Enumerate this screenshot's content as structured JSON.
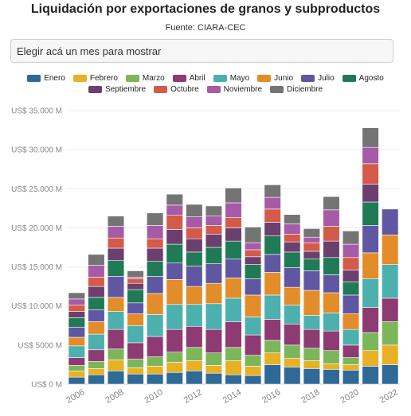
{
  "title": "Liquidación por exportaciones de granos y subproductos",
  "subtitle": "Fuente: CIARA-CEC",
  "month_select": {
    "placeholder": "Elegir acá un mes para mostrar"
  },
  "chart_data": {
    "type": "bar",
    "stacked": true,
    "categories": [
      "2006",
      "2007",
      "2008",
      "2009",
      "2010",
      "2011",
      "2012",
      "2013",
      "2014",
      "2015",
      "2016",
      "2017",
      "2018",
      "2019",
      "2020",
      "2021",
      "2022"
    ],
    "x_tick_labels": [
      "2006",
      "2008",
      "2010",
      "2012",
      "2014",
      "2016",
      "2018",
      "2020",
      "2022"
    ],
    "y_ticks": [
      0,
      5000,
      10000,
      15000,
      20000,
      25000,
      30000,
      35000
    ],
    "y_tick_labels": [
      "US$ 0 M",
      "US$ 5000 M",
      "US$ 10.000 M",
      "US$ 15.000 M",
      "US$ 20.000 M",
      "US$ 25.000 M",
      "US$ 30.000 M",
      "US$ 35.000 M"
    ],
    "ylim": [
      0,
      35000
    ],
    "grid": true,
    "legend_position": "top",
    "series": [
      {
        "name": "Enero",
        "color": "#2f6996",
        "values": [
          900,
          1200,
          1700,
          1300,
          1300,
          1500,
          1700,
          1400,
          1200,
          1100,
          2500,
          2200,
          2000,
          1900,
          1800,
          2300,
          2500
        ]
      },
      {
        "name": "Febrero",
        "color": "#e8b124",
        "values": [
          800,
          800,
          1400,
          800,
          1000,
          1300,
          1300,
          1000,
          1800,
          1200,
          1500,
          1100,
          1000,
          700,
          700,
          2000,
          2500
        ]
      },
      {
        "name": "Marzo",
        "color": "#7cb65a",
        "values": [
          700,
          900,
          1400,
          1100,
          1200,
          1300,
          1700,
          1600,
          1700,
          1400,
          1600,
          1700,
          1600,
          1700,
          900,
          2300,
          3000
        ]
      },
      {
        "name": "Abril",
        "color": "#8e3a73",
        "values": [
          1000,
          1500,
          2500,
          2100,
          2600,
          2900,
          2700,
          3000,
          3300,
          2600,
          2700,
          2700,
          2400,
          2500,
          1600,
          3200,
          3000
        ]
      },
      {
        "name": "Mayo",
        "color": "#4bb0ae",
        "values": [
          1500,
          2000,
          2300,
          2200,
          2800,
          3200,
          2800,
          3300,
          3000,
          2300,
          3100,
          2400,
          1800,
          2300,
          2000,
          3700,
          4300
        ]
      },
      {
        "name": "Junio",
        "color": "#e38c2a",
        "values": [
          1100,
          1600,
          1800,
          1500,
          2700,
          3200,
          2300,
          2600,
          2600,
          2800,
          2900,
          2300,
          3200,
          2600,
          2000,
          3300,
          3800
        ]
      },
      {
        "name": "Julio",
        "color": "#6057a3",
        "values": [
          1300,
          1500,
          2700,
          1400,
          2200,
          2100,
          2600,
          2500,
          2400,
          2100,
          2300,
          2500,
          2500,
          2300,
          2400,
          3500,
          3300
        ]
      },
      {
        "name": "Agosto",
        "color": "#1f7a55",
        "values": [
          1200,
          1600,
          2000,
          1700,
          1900,
          2400,
          1800,
          2100,
          2300,
          1800,
          2400,
          2000,
          1500,
          2200,
          1700,
          3000,
          0
        ]
      },
      {
        "name": "Septiembre",
        "color": "#6b3f6e",
        "values": [
          800,
          1400,
          1600,
          800,
          1700,
          1900,
          1700,
          1700,
          1700,
          1000,
          1700,
          1300,
          1000,
          2100,
          1500,
          2300,
          0
        ]
      },
      {
        "name": "Octubre",
        "color": "#d45a4a",
        "values": [
          800,
          1200,
          1300,
          600,
          1200,
          1800,
          1400,
          1100,
          1300,
          900,
          1700,
          1000,
          1100,
          1900,
          1600,
          2600,
          0
        ]
      },
      {
        "name": "Noviembre",
        "color": "#a65ba7",
        "values": [
          800,
          1500,
          1500,
          200,
          1700,
          1300,
          1400,
          1200,
          1900,
          900,
          1500,
          1300,
          700,
          2100,
          1700,
          2100,
          0
        ]
      },
      {
        "name": "Diciembre",
        "color": "#747474",
        "values": [
          800,
          1400,
          1300,
          800,
          1600,
          1400,
          1600,
          1300,
          1900,
          2000,
          1600,
          1200,
          1100,
          1700,
          1700,
          2500,
          0
        ]
      }
    ]
  }
}
